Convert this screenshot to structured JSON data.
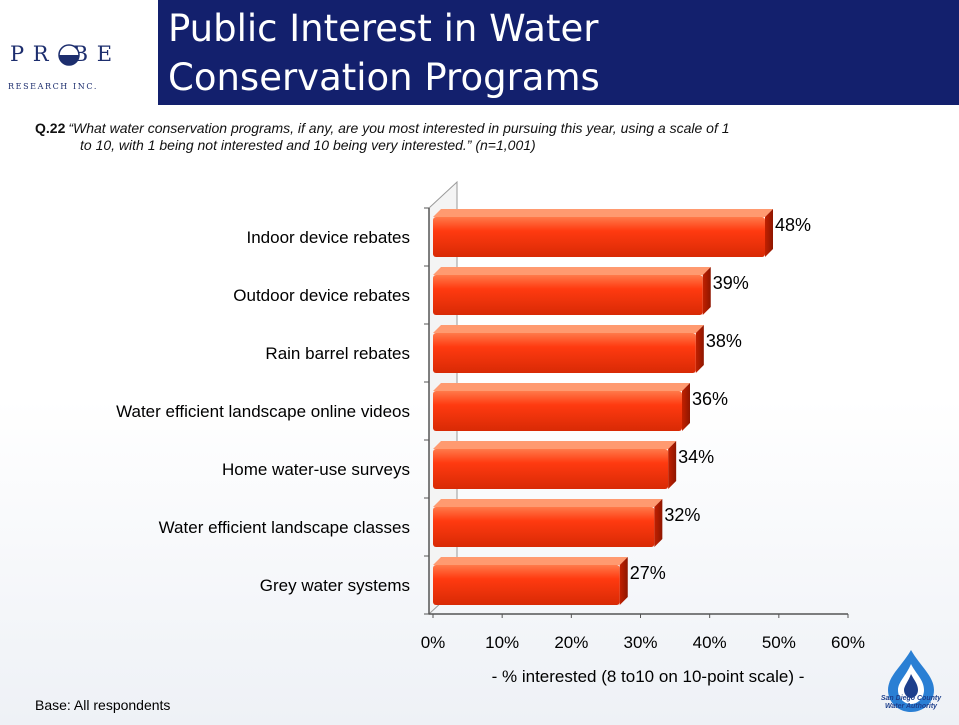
{
  "logo": {
    "word": "P R   B E",
    "sub": "RESEARCH INC."
  },
  "header": {
    "title": "Public Interest in Water Conservation Programs"
  },
  "question": {
    "number": "Q.22",
    "text_line1": "“What water conservation programs, if any, are you most interested in pursuing this year, using a scale of 1",
    "text_line2": "to 10, with 1 being not interested and 10 being very interested.” (n=1,001)"
  },
  "footer": {
    "base": "Base:  All respondents",
    "sdcwa_line1": "San Diego County",
    "sdcwa_line2": "Water Authority"
  },
  "colors": {
    "bar": "#ff3a10",
    "bar_dark": "#c22000",
    "bar_light": "#ff8a5c",
    "title_band": "#13206d"
  },
  "chart_data": {
    "type": "bar",
    "orientation": "horizontal",
    "categories": [
      "Indoor device rebates",
      "Outdoor device rebates",
      "Rain barrel rebates",
      "Water efficient landscape online videos",
      "Home water-use surveys",
      "Water efficient landscape classes",
      "Grey water systems"
    ],
    "values": [
      48,
      39,
      38,
      36,
      34,
      32,
      27
    ],
    "value_labels": [
      "48%",
      "39%",
      "38%",
      "36%",
      "34%",
      "32%",
      "27%"
    ],
    "xlim": [
      0,
      60
    ],
    "xticks": [
      "0%",
      "10%",
      "20%",
      "30%",
      "40%",
      "50%",
      "60%"
    ],
    "xlabel": "- % interested (8 to10 on 10-point scale) -",
    "grid": false
  }
}
